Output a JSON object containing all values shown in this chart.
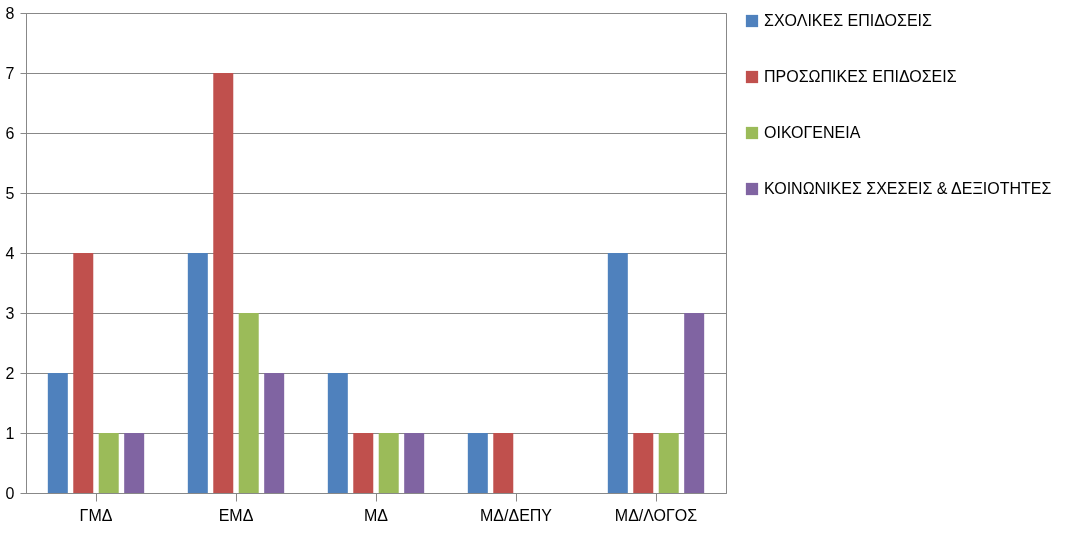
{
  "chart_data": {
    "type": "bar",
    "categories": [
      "ΓΜΔ",
      "ΕΜΔ",
      "ΜΔ",
      "ΜΔ/ΔΕΠΥ",
      "ΜΔ/ΛΟΓΟΣ"
    ],
    "series": [
      {
        "name": "ΣΧΟΛΙΚΕΣ ΕΠΙΔΟΣΕΙΣ",
        "color": "#4f81bd",
        "values": [
          2,
          4,
          2,
          1,
          4
        ]
      },
      {
        "name": "ΠΡΟΣΩΠΙΚΕΣ ΕΠΙΔΟΣΕΙΣ",
        "color": "#c0504d",
        "values": [
          4,
          7,
          1,
          1,
          1
        ]
      },
      {
        "name": "ΟΙΚΟΓΕΝΕΙΑ",
        "color": "#9bbb59",
        "values": [
          1,
          3,
          1,
          0,
          1
        ]
      },
      {
        "name": "ΚΟΙΝΩΝΙΚΕΣ ΣΧΕΣΕΙΣ & ΔΕΞΙΟΤΗΤΕΣ",
        "color": "#8064a2",
        "values": [
          1,
          2,
          1,
          0,
          3
        ]
      }
    ],
    "ylim": [
      0,
      8
    ],
    "yticks": [
      0,
      1,
      2,
      3,
      4,
      5,
      6,
      7,
      8
    ],
    "grid": "y",
    "legend": "right"
  }
}
